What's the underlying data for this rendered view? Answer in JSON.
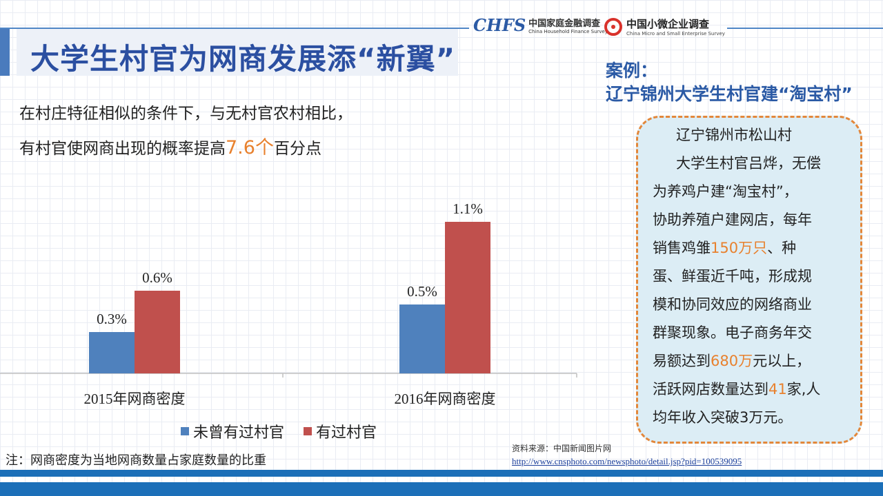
{
  "header": {
    "title": "大学生村官为网商发展添“新翼”",
    "logo1": {
      "mark": "CHFS",
      "cn": "中国家庭金融调查",
      "en": "China Household Finance Survey"
    },
    "logo2": {
      "cn": "中国小微企业调查",
      "en": "China Micro and Small Enterprise Survey"
    }
  },
  "subtitle": {
    "line1": "在村庄特征相似的条件下，与无村官农村相比，",
    "line2_pre": "有村官使网商出现的概率提高",
    "line2_highlight": "7.6个",
    "line2_post": "百分点"
  },
  "case": {
    "label": "案例：",
    "title": "辽宁锦州大学生村官建“淘宝村”",
    "box": {
      "heading": "辽宁锦州市松山村",
      "l1": "大学生村官吕烨，无偿",
      "l2": "为养鸡户建“淘宝村”，",
      "l3": "协助养殖户建网店，每年",
      "l4a": "销售鸡雏",
      "l4h": "150万只",
      "l4b": "、种",
      "l5": "蛋、鲜蛋近千吨，形成规",
      "l6": "模和协同效应的网络商业",
      "l7": "群聚现象。电子商务年交",
      "l8a": "易额达到",
      "l8h": "680万",
      "l8b": "元以上，",
      "l9a": "活跃网店数量达到",
      "l9h": "41",
      "l9b": "家,人",
      "l10": "均年收入突破3万元。"
    }
  },
  "chart_data": {
    "type": "bar",
    "categories": [
      "2015年网商密度",
      "2016年网商密度"
    ],
    "series": [
      {
        "name": "未曾有过村官",
        "values": [
          0.3,
          0.5
        ],
        "labels": [
          "0.3%",
          "0.5%"
        ],
        "color": "#4f81bd"
      },
      {
        "name": "有过村官",
        "values": [
          0.6,
          1.1
        ],
        "labels": [
          "0.6%",
          "1.1%"
        ],
        "color": "#c0504d"
      }
    ],
    "title": "",
    "xlabel": "",
    "ylabel": "",
    "ylim": [
      0,
      1.2
    ],
    "legend": "bottom"
  },
  "note": "注：网商密度为当地网商数量占家庭数量的比重",
  "source": {
    "label": "资料来源：中国新闻图片网",
    "url": "http://www.cnsphoto.com/newsphoto/detail.jsp?pid=100539095"
  }
}
